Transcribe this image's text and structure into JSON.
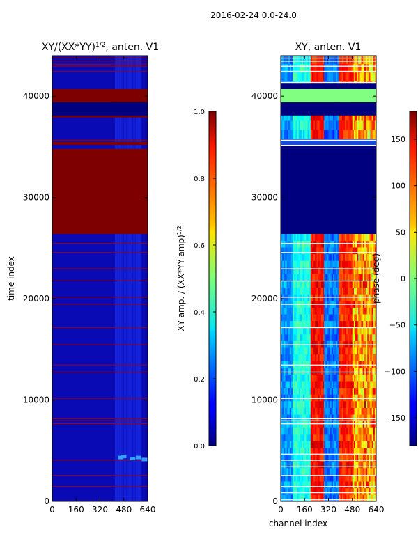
{
  "figure": {
    "suptitle": "2016-02-24 0.0-24.0"
  },
  "chart_data": [
    {
      "type": "heatmap",
      "title_main": "XY/(XX*YY)",
      "title_sup": "1/2",
      "title_tail": ", anten. V1",
      "xlabel": "",
      "ylabel": "time index",
      "xlim": [
        0,
        640
      ],
      "ylim": [
        0,
        44000
      ],
      "xticks": [
        "0",
        "160",
        "320",
        "480",
        "640"
      ],
      "xtick_values": [
        0,
        160,
        320,
        480,
        640
      ],
      "yticks": [
        "0",
        "10000",
        "20000",
        "30000",
        "40000"
      ],
      "ytick_values": [
        0,
        10000,
        20000,
        30000,
        40000
      ],
      "colorbar": {
        "label_main": "XY amp. / (XX*YY amp)",
        "label_sup": "1/2",
        "range": [
          0.0,
          1.0
        ],
        "ticks": [
          "0.0",
          "0.2",
          "0.4",
          "0.6",
          "0.8",
          "1.0"
        ],
        "tick_values": [
          0.0,
          0.2,
          0.4,
          0.6,
          0.8,
          1.0
        ]
      },
      "saturated_bands": [
        [
          26400,
          34800
        ],
        [
          35200,
          35500
        ],
        [
          37900,
          38100
        ],
        [
          39400,
          40600
        ],
        [
          40600,
          40700
        ]
      ],
      "low_band": [
        38100,
        39400
      ],
      "flag_lines": [
        1500,
        2600,
        4100,
        7700,
        8000,
        8200,
        10200,
        12800,
        13500,
        15500,
        17200,
        19500,
        20200,
        21800,
        23000,
        24600,
        25500,
        35700,
        42500,
        43000,
        43200,
        43500,
        43800
      ]
    },
    {
      "type": "heatmap",
      "title": "XY, anten. V1",
      "xlabel": "channel index",
      "ylabel": "",
      "xlim": [
        0,
        640
      ],
      "ylim": [
        0,
        44000
      ],
      "xticks": [
        "0",
        "160",
        "320",
        "480",
        "640"
      ],
      "xtick_values": [
        0,
        160,
        320,
        480,
        640
      ],
      "yticks": [
        "0",
        "10000",
        "20000",
        "30000",
        "40000"
      ],
      "ytick_values": [
        0,
        10000,
        20000,
        30000,
        40000
      ],
      "colorbar": {
        "label": "phase (deg)",
        "range": [
          -180,
          180
        ],
        "ticks": [
          "−150",
          "−100",
          "−50",
          "0",
          "50",
          "100",
          "150"
        ],
        "tick_values": [
          -150,
          -100,
          -50,
          0,
          50,
          100,
          150
        ]
      },
      "flagged_phase_blocks": [
        [
          26400,
          34800
        ],
        [
          38100,
          39400
        ]
      ],
      "constant_phase_band": [
        39400,
        40700
      ],
      "constant_phase_value": 0,
      "flag_lines": [
        200,
        900,
        1500,
        2600,
        3500,
        4100,
        4700,
        7700,
        8000,
        8200,
        10200,
        12800,
        13500,
        15500,
        17200,
        19500,
        20200,
        21800,
        23000,
        24600,
        25500,
        35200,
        35700,
        41400,
        42500,
        43000,
        43500,
        43800
      ]
    }
  ]
}
